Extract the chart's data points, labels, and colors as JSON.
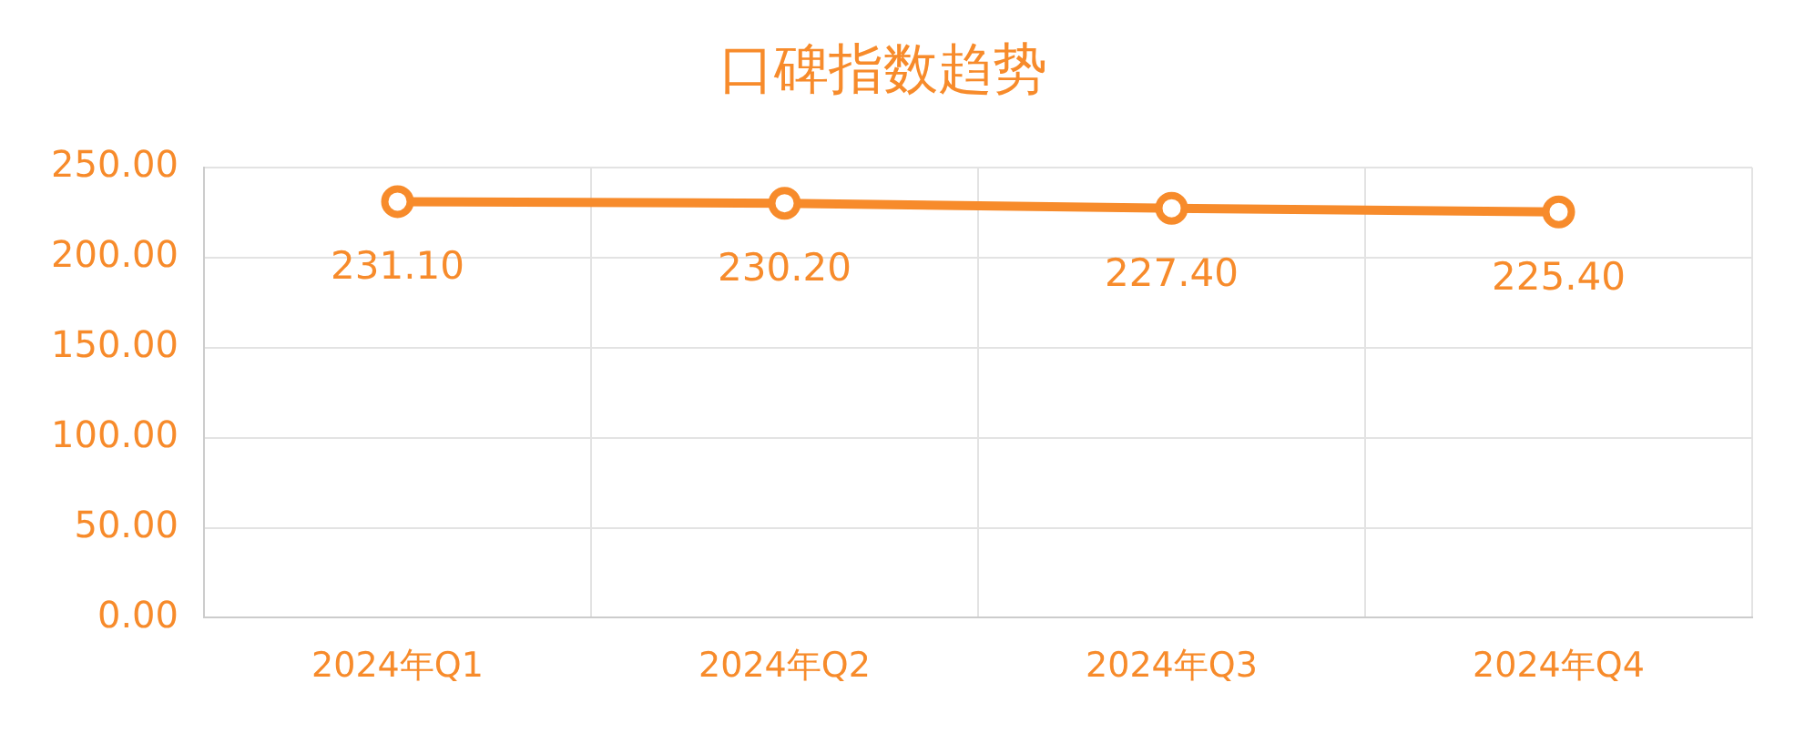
{
  "chart_data": {
    "type": "line",
    "title": "口碑指数趋势",
    "categories": [
      "2024年Q1",
      "2024年Q2",
      "2024年Q3",
      "2024年Q4"
    ],
    "series": [
      {
        "color": "#f78b2b",
        "values": [
          231.1,
          230.2,
          227.4,
          225.4
        ],
        "value_labels": [
          "231.10",
          "230.20",
          "227.40",
          "225.40"
        ]
      }
    ],
    "ylim": [
      0,
      250
    ],
    "yticks": [
      {
        "value": 0,
        "label": "0.00"
      },
      {
        "value": 50,
        "label": "50.00"
      },
      {
        "value": 100,
        "label": "100.00"
      },
      {
        "value": 150,
        "label": "150.00"
      },
      {
        "value": 200,
        "label": "200.00"
      },
      {
        "value": 250,
        "label": "250.00"
      }
    ],
    "grid": true,
    "marker": "circle",
    "line_style": "solid"
  }
}
